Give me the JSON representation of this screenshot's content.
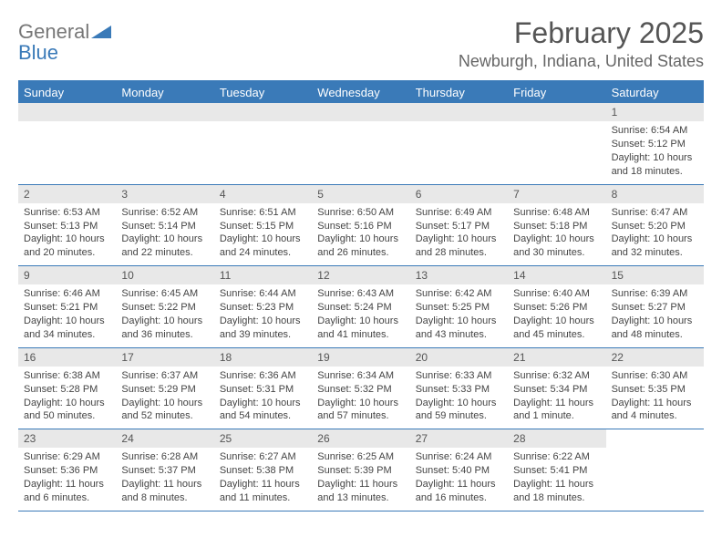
{
  "brand": {
    "text_gray": "General",
    "text_blue": "Blue",
    "triangle_color": "#3a7ab8"
  },
  "title": "February 2025",
  "location": "Newburgh, Indiana, United States",
  "header_bg": "#3a7ab8",
  "day_headers": [
    "Sunday",
    "Monday",
    "Tuesday",
    "Wednesday",
    "Thursday",
    "Friday",
    "Saturday"
  ],
  "cell_fontsize": 11,
  "daynum_bg": "#e8e8e8",
  "weeks": [
    [
      {
        "day": "",
        "lines": []
      },
      {
        "day": "",
        "lines": []
      },
      {
        "day": "",
        "lines": []
      },
      {
        "day": "",
        "lines": []
      },
      {
        "day": "",
        "lines": []
      },
      {
        "day": "",
        "lines": []
      },
      {
        "day": "1",
        "lines": [
          "Sunrise: 6:54 AM",
          "Sunset: 5:12 PM",
          "Daylight: 10 hours and 18 minutes."
        ]
      }
    ],
    [
      {
        "day": "2",
        "lines": [
          "Sunrise: 6:53 AM",
          "Sunset: 5:13 PM",
          "Daylight: 10 hours and 20 minutes."
        ]
      },
      {
        "day": "3",
        "lines": [
          "Sunrise: 6:52 AM",
          "Sunset: 5:14 PM",
          "Daylight: 10 hours and 22 minutes."
        ]
      },
      {
        "day": "4",
        "lines": [
          "Sunrise: 6:51 AM",
          "Sunset: 5:15 PM",
          "Daylight: 10 hours and 24 minutes."
        ]
      },
      {
        "day": "5",
        "lines": [
          "Sunrise: 6:50 AM",
          "Sunset: 5:16 PM",
          "Daylight: 10 hours and 26 minutes."
        ]
      },
      {
        "day": "6",
        "lines": [
          "Sunrise: 6:49 AM",
          "Sunset: 5:17 PM",
          "Daylight: 10 hours and 28 minutes."
        ]
      },
      {
        "day": "7",
        "lines": [
          "Sunrise: 6:48 AM",
          "Sunset: 5:18 PM",
          "Daylight: 10 hours and 30 minutes."
        ]
      },
      {
        "day": "8",
        "lines": [
          "Sunrise: 6:47 AM",
          "Sunset: 5:20 PM",
          "Daylight: 10 hours and 32 minutes."
        ]
      }
    ],
    [
      {
        "day": "9",
        "lines": [
          "Sunrise: 6:46 AM",
          "Sunset: 5:21 PM",
          "Daylight: 10 hours and 34 minutes."
        ]
      },
      {
        "day": "10",
        "lines": [
          "Sunrise: 6:45 AM",
          "Sunset: 5:22 PM",
          "Daylight: 10 hours and 36 minutes."
        ]
      },
      {
        "day": "11",
        "lines": [
          "Sunrise: 6:44 AM",
          "Sunset: 5:23 PM",
          "Daylight: 10 hours and 39 minutes."
        ]
      },
      {
        "day": "12",
        "lines": [
          "Sunrise: 6:43 AM",
          "Sunset: 5:24 PM",
          "Daylight: 10 hours and 41 minutes."
        ]
      },
      {
        "day": "13",
        "lines": [
          "Sunrise: 6:42 AM",
          "Sunset: 5:25 PM",
          "Daylight: 10 hours and 43 minutes."
        ]
      },
      {
        "day": "14",
        "lines": [
          "Sunrise: 6:40 AM",
          "Sunset: 5:26 PM",
          "Daylight: 10 hours and 45 minutes."
        ]
      },
      {
        "day": "15",
        "lines": [
          "Sunrise: 6:39 AM",
          "Sunset: 5:27 PM",
          "Daylight: 10 hours and 48 minutes."
        ]
      }
    ],
    [
      {
        "day": "16",
        "lines": [
          "Sunrise: 6:38 AM",
          "Sunset: 5:28 PM",
          "Daylight: 10 hours and 50 minutes."
        ]
      },
      {
        "day": "17",
        "lines": [
          "Sunrise: 6:37 AM",
          "Sunset: 5:29 PM",
          "Daylight: 10 hours and 52 minutes."
        ]
      },
      {
        "day": "18",
        "lines": [
          "Sunrise: 6:36 AM",
          "Sunset: 5:31 PM",
          "Daylight: 10 hours and 54 minutes."
        ]
      },
      {
        "day": "19",
        "lines": [
          "Sunrise: 6:34 AM",
          "Sunset: 5:32 PM",
          "Daylight: 10 hours and 57 minutes."
        ]
      },
      {
        "day": "20",
        "lines": [
          "Sunrise: 6:33 AM",
          "Sunset: 5:33 PM",
          "Daylight: 10 hours and 59 minutes."
        ]
      },
      {
        "day": "21",
        "lines": [
          "Sunrise: 6:32 AM",
          "Sunset: 5:34 PM",
          "Daylight: 11 hours and 1 minute."
        ]
      },
      {
        "day": "22",
        "lines": [
          "Sunrise: 6:30 AM",
          "Sunset: 5:35 PM",
          "Daylight: 11 hours and 4 minutes."
        ]
      }
    ],
    [
      {
        "day": "23",
        "lines": [
          "Sunrise: 6:29 AM",
          "Sunset: 5:36 PM",
          "Daylight: 11 hours and 6 minutes."
        ]
      },
      {
        "day": "24",
        "lines": [
          "Sunrise: 6:28 AM",
          "Sunset: 5:37 PM",
          "Daylight: 11 hours and 8 minutes."
        ]
      },
      {
        "day": "25",
        "lines": [
          "Sunrise: 6:27 AM",
          "Sunset: 5:38 PM",
          "Daylight: 11 hours and 11 minutes."
        ]
      },
      {
        "day": "26",
        "lines": [
          "Sunrise: 6:25 AM",
          "Sunset: 5:39 PM",
          "Daylight: 11 hours and 13 minutes."
        ]
      },
      {
        "day": "27",
        "lines": [
          "Sunrise: 6:24 AM",
          "Sunset: 5:40 PM",
          "Daylight: 11 hours and 16 minutes."
        ]
      },
      {
        "day": "28",
        "lines": [
          "Sunrise: 6:22 AM",
          "Sunset: 5:41 PM",
          "Daylight: 11 hours and 18 minutes."
        ]
      },
      {
        "day": "",
        "lines": []
      }
    ]
  ]
}
